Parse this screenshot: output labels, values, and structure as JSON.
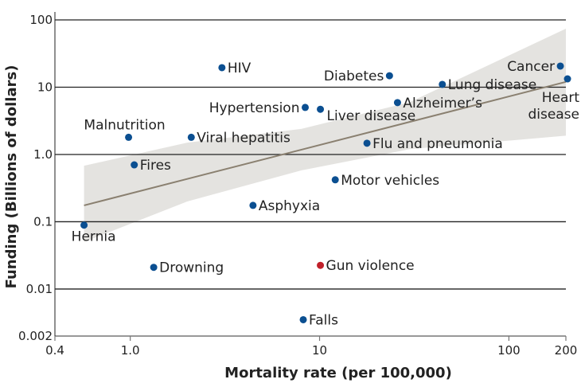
{
  "chart_data": {
    "type": "scatter",
    "xscale": "log",
    "yscale": "log",
    "xlabel": "Mortality rate (per 100,000)",
    "ylabel": "Funding (Billions of dollars)",
    "xlim": [
      0.4,
      200
    ],
    "ylim": [
      0.002,
      100
    ],
    "xticks": [
      {
        "v": 0.4,
        "label": "0.4"
      },
      {
        "v": 1,
        "label": "1.0"
      },
      {
        "v": 10,
        "label": "10"
      },
      {
        "v": 100,
        "label": "100"
      },
      {
        "v": 200,
        "label": "200"
      }
    ],
    "yticks": [
      {
        "v": 100,
        "label": "100"
      },
      {
        "v": 10,
        "label": "10"
      },
      {
        "v": 1,
        "label": "1.0"
      },
      {
        "v": 0.1,
        "label": "0.1"
      },
      {
        "v": 0.01,
        "label": "0.01"
      },
      {
        "v": 0.002,
        "label": "0.002"
      }
    ],
    "grid": "horizontal",
    "colors": {
      "point": "#0b4f91",
      "highlight": "#c0202a",
      "trend": "#8a8070",
      "band": "#e4e3e0"
    },
    "points": [
      {
        "name": "Hernia",
        "x": 0.57,
        "y": 0.089,
        "label_pos": "below"
      },
      {
        "name": "Malnutrition",
        "x": 0.98,
        "y": 1.8,
        "label_pos": "above"
      },
      {
        "name": "Fires",
        "x": 1.05,
        "y": 0.7,
        "label_pos": "right"
      },
      {
        "name": "Drowning",
        "x": 1.33,
        "y": 0.021,
        "label_pos": "right"
      },
      {
        "name": "Viral hepatitis",
        "x": 2.1,
        "y": 1.8,
        "label_pos": "right"
      },
      {
        "name": "HIV",
        "x": 3.05,
        "y": 19.5,
        "label_pos": "right"
      },
      {
        "name": "Asphyxia",
        "x": 4.45,
        "y": 0.175,
        "label_pos": "right"
      },
      {
        "name": "Hypertension",
        "x": 8.4,
        "y": 5.0,
        "label_pos": "left"
      },
      {
        "name": "Falls",
        "x": 8.2,
        "y": 0.0035,
        "label_pos": "right"
      },
      {
        "name": "Gun violence",
        "x": 10.1,
        "y": 0.0225,
        "label_pos": "right",
        "highlight": true
      },
      {
        "name": "Liver disease",
        "x": 10.1,
        "y": 4.7,
        "label_pos": "belowright"
      },
      {
        "name": "Motor vehicles",
        "x": 12.1,
        "y": 0.42,
        "label_pos": "right"
      },
      {
        "name": "Flu and pneumonia",
        "x": 17.8,
        "y": 1.47,
        "label_pos": "right"
      },
      {
        "name": "Diabetes",
        "x": 23.4,
        "y": 14.8,
        "label_pos": "left"
      },
      {
        "name": "Alzheimer’s",
        "x": 25.8,
        "y": 5.9,
        "label_pos": "right"
      },
      {
        "name": "Lung disease",
        "x": 44.5,
        "y": 11,
        "label_pos": "right"
      },
      {
        "name": "Cancer",
        "x": 187,
        "y": 20.6,
        "label_pos": "left"
      },
      {
        "name": "Heart disease",
        "x": 204,
        "y": 13.3,
        "label_pos": "belowleft2"
      }
    ],
    "trend": {
      "x": [
        0.57,
        200
      ],
      "y": [
        0.175,
        12
      ]
    },
    "band": {
      "x": [
        0.57,
        2,
        8,
        30,
        200
      ],
      "upper": [
        0.68,
        1.5,
        2.4,
        6,
        74
      ],
      "lower": [
        0.05,
        0.2,
        0.58,
        1.2,
        1.9
      ]
    }
  }
}
